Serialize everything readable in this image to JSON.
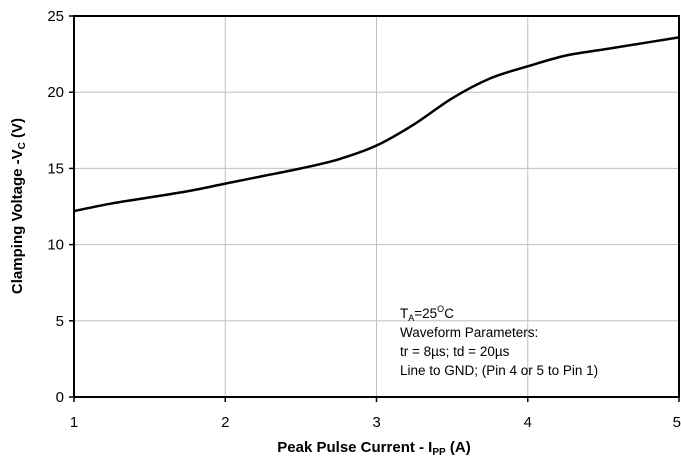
{
  "chart_data": {
    "type": "line",
    "xlabel": {
      "main": "Peak Pulse Current - I",
      "sub": "PP",
      "unit": " (A)"
    },
    "ylabel": {
      "main": "Clamping Voltage -V",
      "sub": "C",
      "unit": " (V)"
    },
    "xlim": [
      1,
      5
    ],
    "ylim": [
      0,
      25
    ],
    "xticks": [
      "1",
      "2",
      "3",
      "4",
      "5"
    ],
    "yticks": [
      "0",
      "5",
      "10",
      "15",
      "20",
      "25"
    ],
    "grid": true,
    "series": [
      {
        "x": [
          1.0,
          1.25,
          1.5,
          1.75,
          2.0,
          2.25,
          2.5,
          2.75,
          3.0,
          3.25,
          3.5,
          3.75,
          4.0,
          4.25,
          4.5,
          4.75,
          5.0
        ],
        "y": [
          12.2,
          12.7,
          13.1,
          13.5,
          14.0,
          14.5,
          15.0,
          15.6,
          16.5,
          17.9,
          19.6,
          20.9,
          21.7,
          22.4,
          22.8,
          23.2,
          23.6
        ],
        "color": "#000000"
      }
    ],
    "annotation": {
      "line1_a": "T",
      "line1_sub": "A",
      "line1_b": "=25",
      "line1_sup": "O",
      "line1_c": "C",
      "line2": "Waveform Parameters:",
      "line3": "tr = 8µs; td = 20µs",
      "line4": "Line to GND; (Pin 4 or 5 to Pin 1)"
    }
  }
}
